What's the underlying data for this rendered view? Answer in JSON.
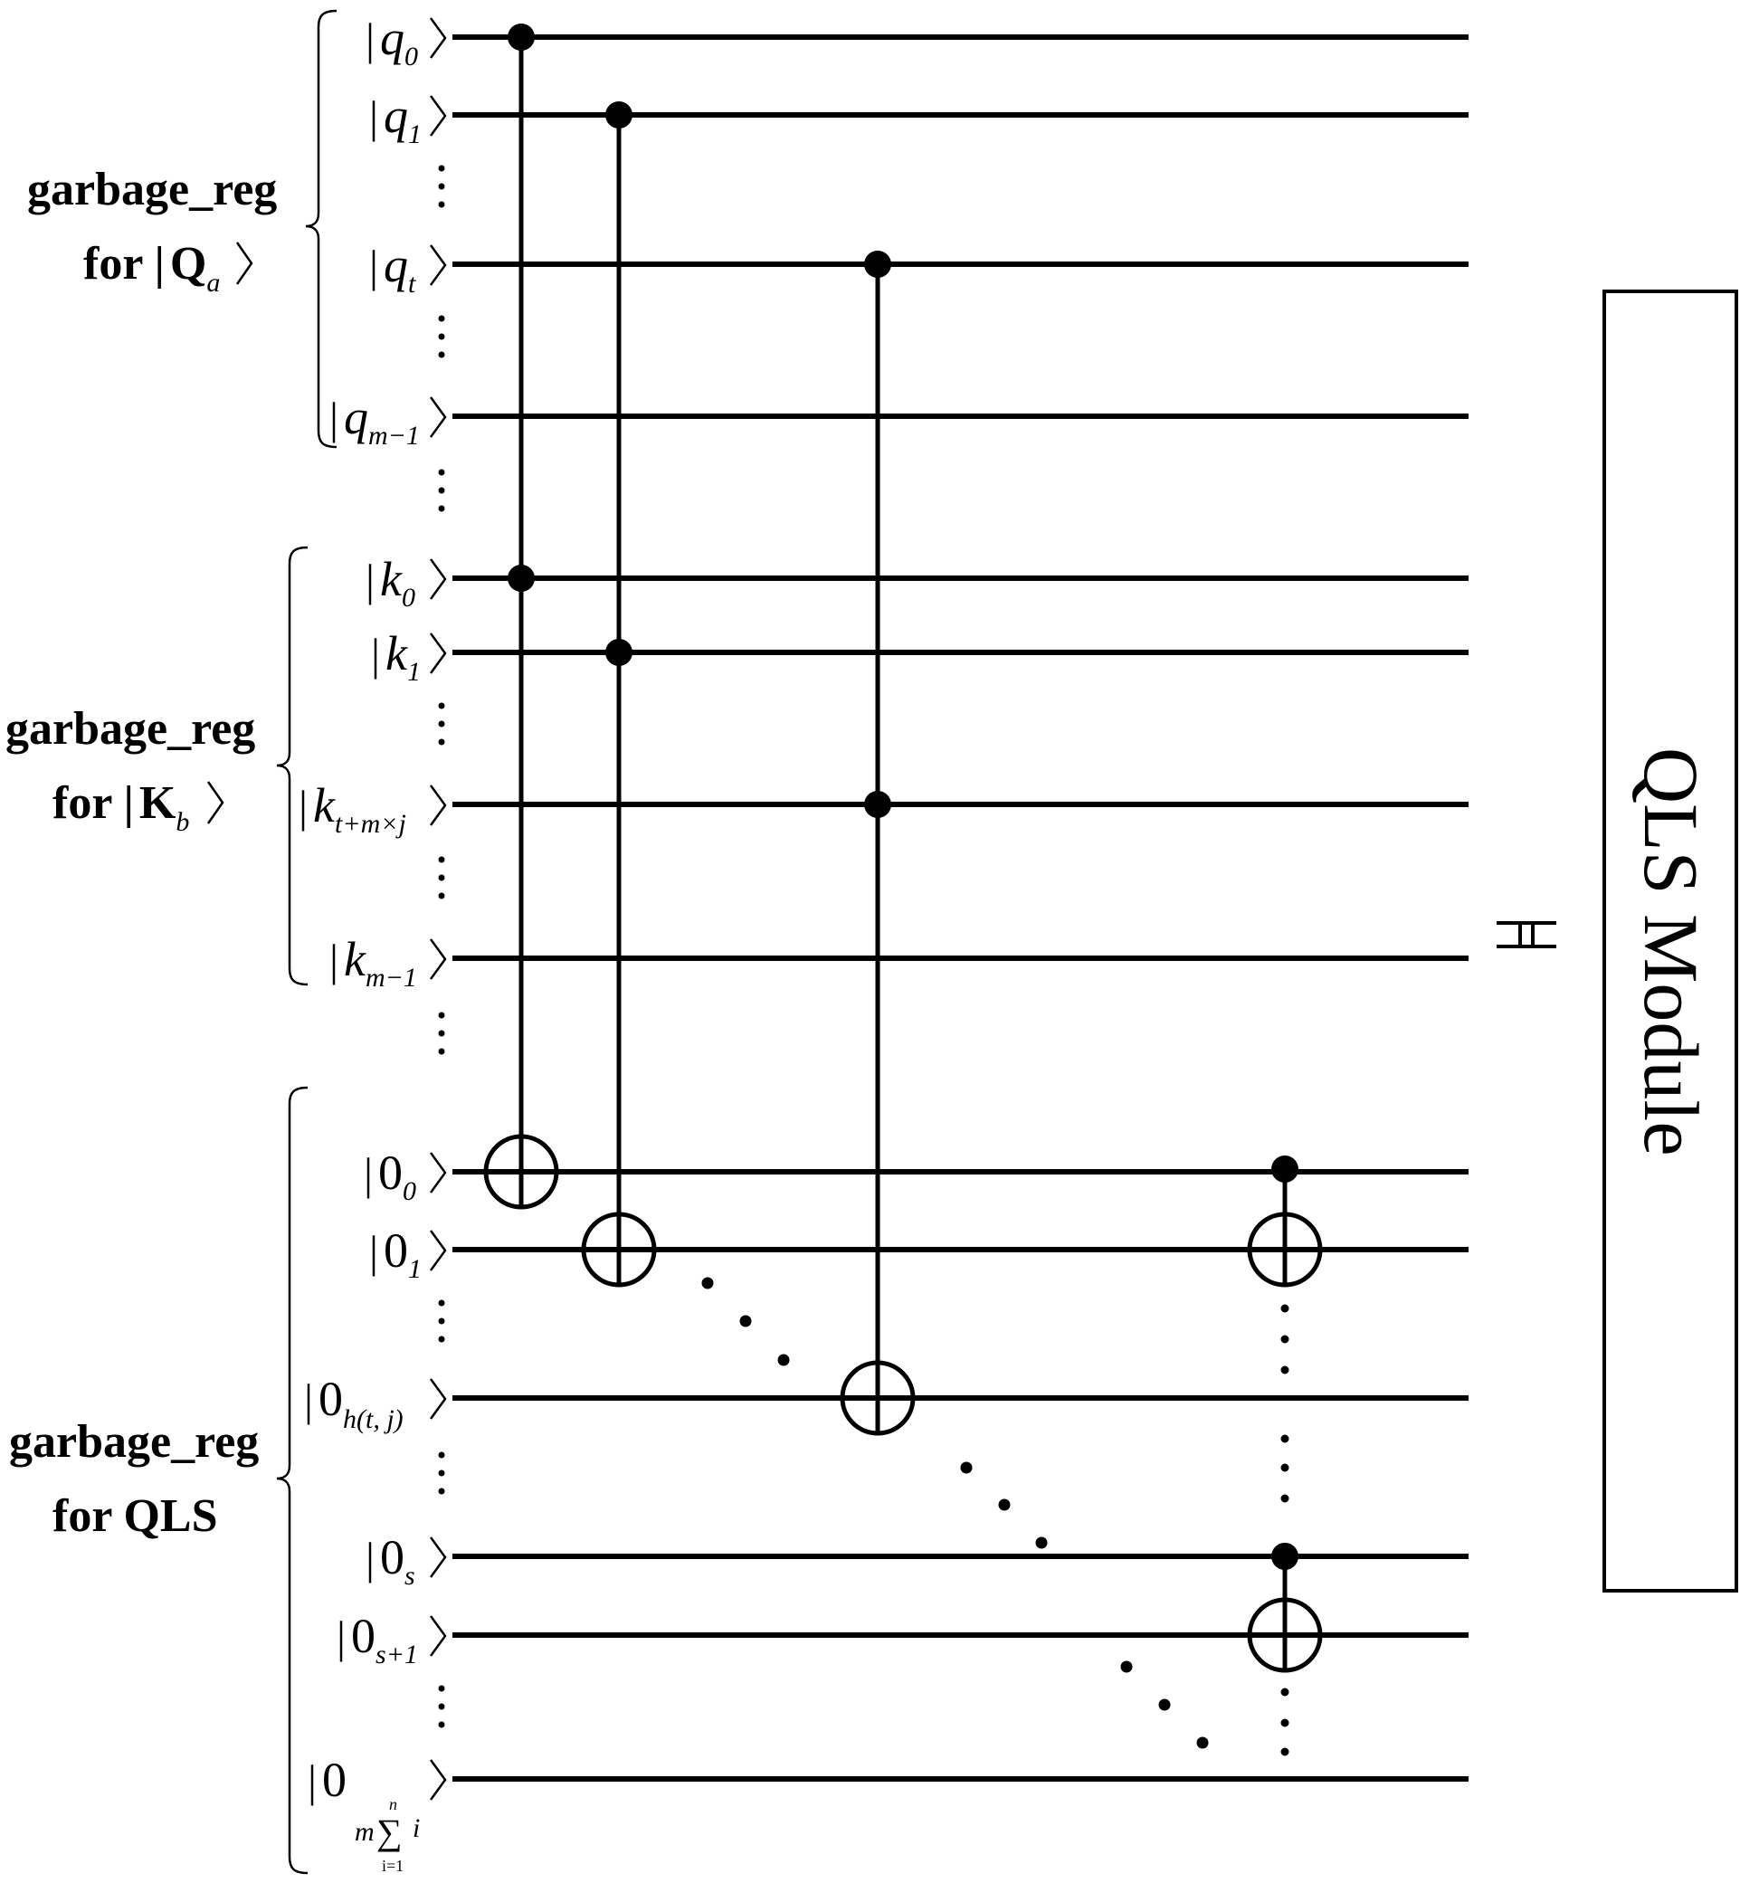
{
  "registers": [
    {
      "line1": "garbage_reg",
      "line2_prefix": "for |",
      "line2_symbol": "Q",
      "line2_sub": "a"
    },
    {
      "line1": "garbage_reg",
      "line2_prefix": "for |",
      "line2_symbol": "K",
      "line2_sub": "b"
    },
    {
      "line1": "garbage_reg",
      "line2": "for QLS"
    }
  ],
  "qubits": [
    {
      "symbol": "q",
      "sub": "0"
    },
    {
      "symbol": "q",
      "sub": "1"
    },
    {
      "symbol": "q",
      "sub": "t"
    },
    {
      "symbol": "q",
      "sub": "m−1"
    },
    {
      "symbol": "k",
      "sub": "0"
    },
    {
      "symbol": "k",
      "sub": "1"
    },
    {
      "symbol": "k",
      "sub": "t+m×j"
    },
    {
      "symbol": "k",
      "sub": "m−1"
    },
    {
      "symbol": "0",
      "sub": "0"
    },
    {
      "symbol": "0",
      "sub": "1"
    },
    {
      "symbol": "0",
      "sub": "h(t, j)"
    },
    {
      "symbol": "0",
      "sub": "s"
    },
    {
      "symbol": "0",
      "sub": "s+1"
    },
    {
      "symbol": "0",
      "sub_m": "m",
      "sub_sum": "∑",
      "sub_top": "n",
      "sub_var": "i",
      "sub_bottom": "i=1"
    }
  ],
  "module": {
    "label": "QLS Module"
  }
}
